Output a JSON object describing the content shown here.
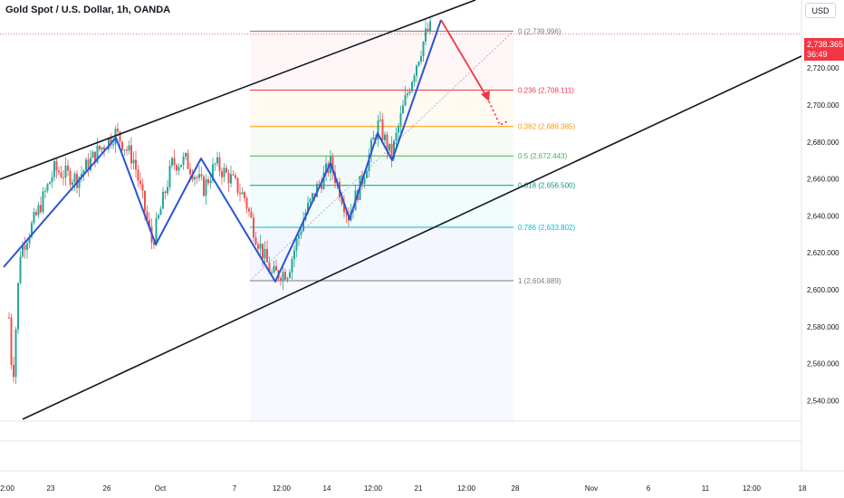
{
  "header": {
    "title": "Gold Spot / U.S. Dollar, 1h, OANDA",
    "currency": "USD"
  },
  "price_tag": {
    "price": "2,738.365",
    "countdown": "36:49"
  },
  "colors": {
    "up": "#26a69a",
    "down": "#ef5350",
    "wave": "#2a54d6",
    "projection": "#f23645",
    "channel": "#131722",
    "fib_0": "#787b86",
    "fib_0236": "#f23645",
    "fib_0382": "#ff9800",
    "fib_05": "#4caf50",
    "fib_0618": "#089981",
    "fib_0786": "#00bcd4",
    "fib_1": "#787b86"
  },
  "chart_data": {
    "type": "candlestick",
    "title": "Gold Spot / U.S. Dollar, 1h, OANDA",
    "y_axis": {
      "range": [
        2527,
        2752
      ],
      "ticks": [
        "2,540.000",
        "2,560.000",
        "2,580.000",
        "2,600.000",
        "2,620.000",
        "2,640.000",
        "2,660.000",
        "2,680.000",
        "2,700.000",
        "2,720.000"
      ]
    },
    "x_axis": {
      "ticks": [
        "2:00",
        "23",
        "26",
        "Oct",
        "7",
        "12:00",
        "14",
        "12:00",
        "21",
        "12:00",
        "28",
        "Nov",
        "6",
        "11",
        "12:00",
        "18"
      ]
    },
    "fib_levels": [
      {
        "ratio": 0,
        "price": 2739.996,
        "label": "0 (2,739.996)"
      },
      {
        "ratio": 0.236,
        "price": 2708.111,
        "label": "0.236 (2,708.111)"
      },
      {
        "ratio": 0.382,
        "price": 2688.385,
        "label": "0.382 (2,688.385)"
      },
      {
        "ratio": 0.5,
        "price": 2672.443,
        "label": "0.5 (2,672.443)"
      },
      {
        "ratio": 0.618,
        "price": 2656.5,
        "label": "0.618 (2,656.500)"
      },
      {
        "ratio": 0.786,
        "price": 2633.802,
        "label": "0.786 (2,633.802)"
      },
      {
        "ratio": 1,
        "price": 2604.889,
        "label": "1 (2,604.889)"
      }
    ],
    "current_price": 2738.365
  }
}
